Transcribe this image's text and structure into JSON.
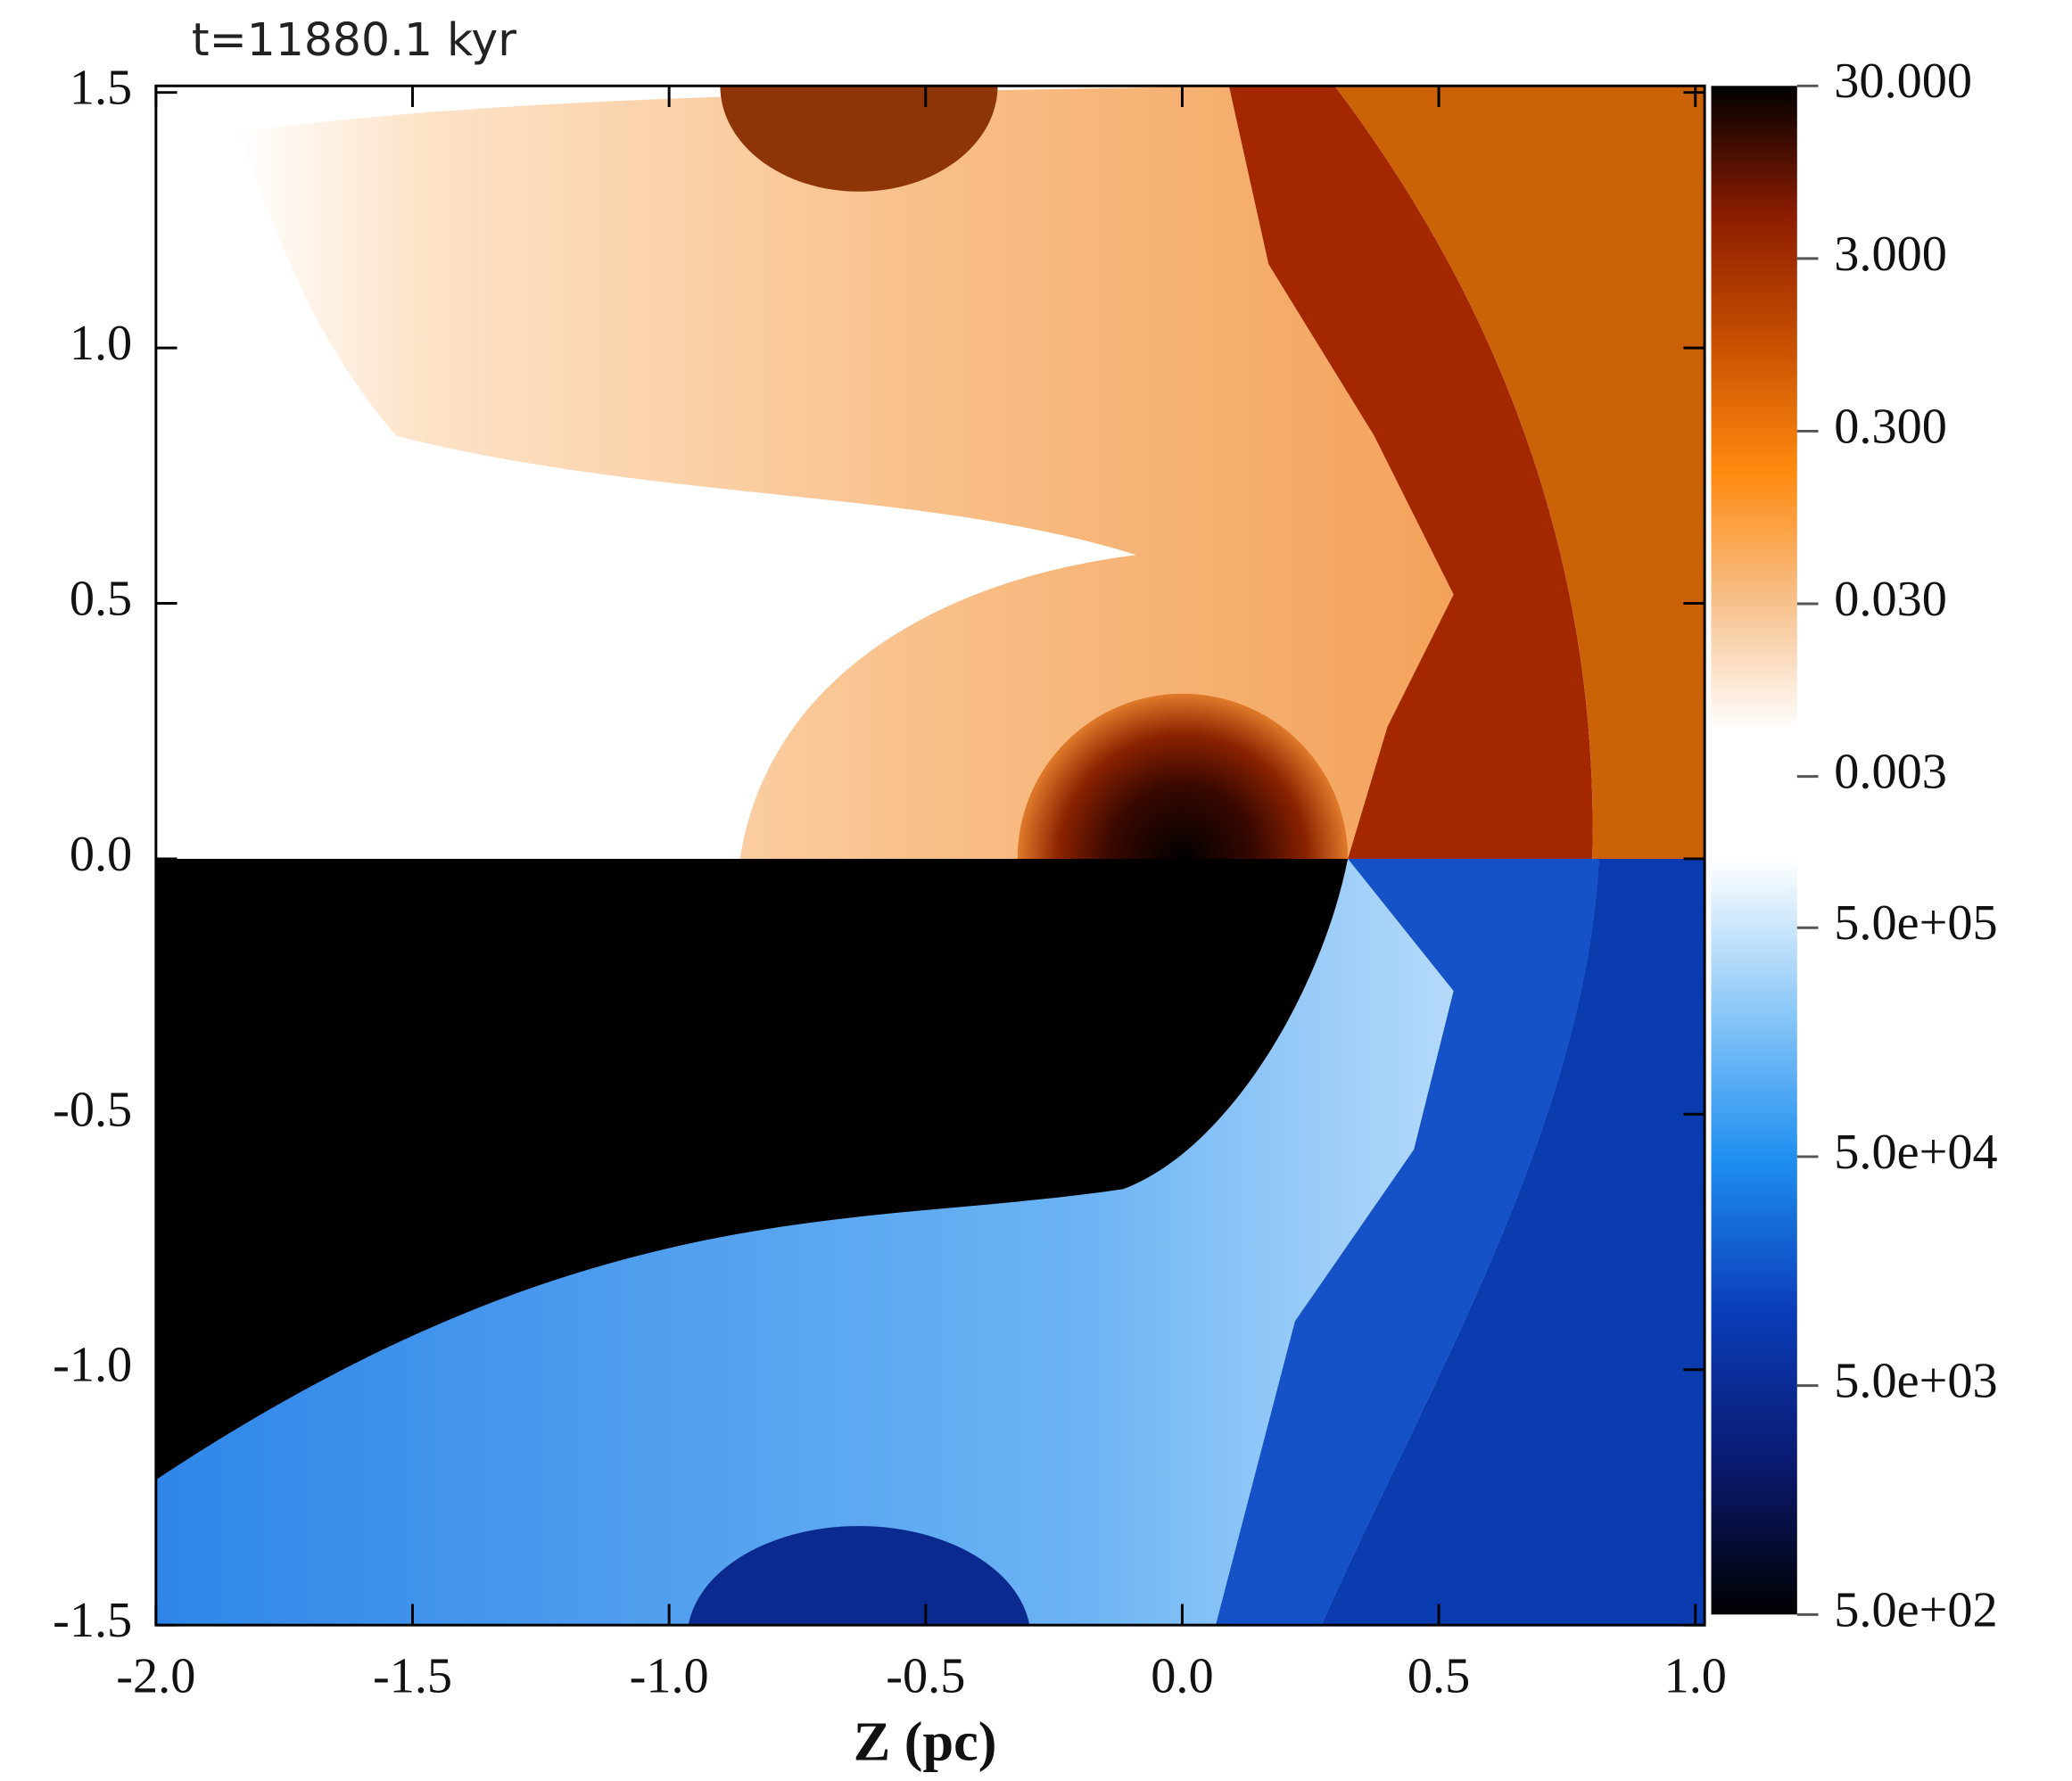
{
  "chart_data": {
    "type": "image",
    "title": "t=11880.1 kyr",
    "x_label": "Z (pc)",
    "xlim": [
      -2.0,
      1.0
    ],
    "ylim": [
      -1.5,
      1.5
    ],
    "xticks": [
      {
        "value": -2.0,
        "label": "-2.0"
      },
      -1.5,
      {
        "value": -1.0,
        "label": "-1.0"
      },
      -0.5,
      {
        "value": 0.0,
        "label": "0.0"
      },
      0.5,
      {
        "value": 1.0,
        "label": "1.0"
      }
    ],
    "yticks": [
      -1.5,
      {
        "value": -1.0,
        "label": "-1.0"
      },
      -0.5,
      {
        "value": 0.0,
        "label": "0.0"
      },
      0.5,
      {
        "value": 1.0,
        "label": "1.0"
      },
      1.5
    ],
    "colorbars": [
      {
        "scale": "log",
        "clim": [
          0.001,
          30
        ],
        "ticks": [
          {
            "value": 30,
            "label": "30.000"
          },
          {
            "value": 3,
            "label": "3.000"
          },
          {
            "value": 0.3,
            "label": "0.300"
          },
          {
            "value": 0.03,
            "label": "0.030"
          },
          {
            "value": 0.003,
            "label": "0.003"
          }
        ],
        "colors": [
          "#ffffff",
          "#ffffff",
          "#f7c08a",
          "#ff8a10",
          "#c85000",
          "#8c1c00",
          "#000000"
        ]
      },
      {
        "scale": "log",
        "clim": [
          500,
          1000000
        ],
        "ticks": [
          {
            "value": 500000,
            "label": "5.0e+05"
          },
          {
            "value": 50000,
            "label": "5.0e+04"
          },
          {
            "value": 5000,
            "label": "5.0e+03"
          },
          {
            "value": 500,
            "label": "5.0e+02"
          }
        ],
        "colors": [
          "#000000",
          "#0a1a70",
          "#0a3cb8",
          "#1e8ef0",
          "#8cc8f8",
          "#ffffff"
        ]
      }
    ]
  }
}
